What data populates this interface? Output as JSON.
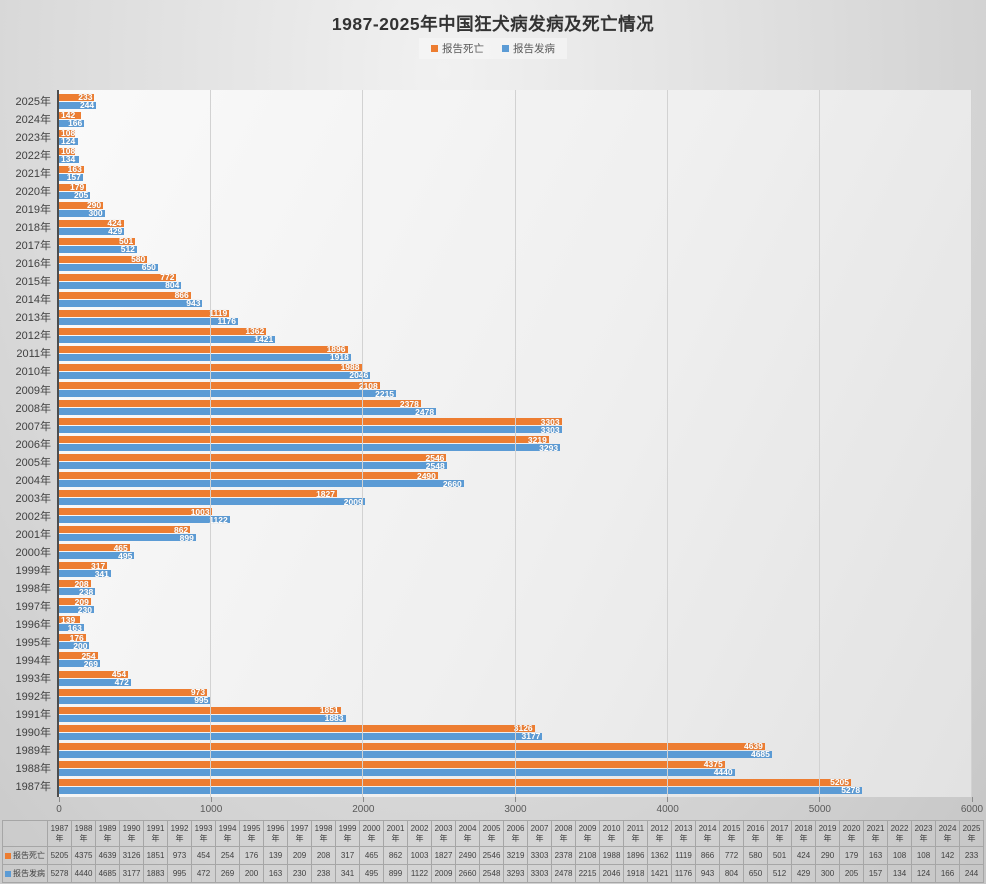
{
  "title": "1987-2025年中国狂犬病发病及死亡情况",
  "year_suffix": "年",
  "colors": {
    "deaths": "#ED7D31",
    "cases": "#5B9BD5"
  },
  "legend": [
    {
      "label": "报告死亡",
      "color": "#ED7D31"
    },
    {
      "label": "报告发病",
      "color": "#5B9BD5"
    }
  ],
  "chart_data": {
    "type": "bar",
    "orientation": "horizontal",
    "title": "1987-2025年中国狂犬病发病及死亡情况",
    "xlabel": "",
    "ylabel": "",
    "xlim": [
      0,
      6000
    ],
    "x_ticks": [
      0,
      1000,
      2000,
      3000,
      4000,
      5000,
      6000
    ],
    "grid": true,
    "legend_position": "top",
    "axis_note": "2025 at top, 1987 at bottom; data labels inside bar end, white",
    "categories": [
      "1987",
      "1988",
      "1989",
      "1990",
      "1991",
      "1992",
      "1993",
      "1994",
      "1995",
      "1996",
      "1997",
      "1998",
      "1999",
      "2000",
      "2001",
      "2002",
      "2003",
      "2004",
      "2005",
      "2006",
      "2007",
      "2008",
      "2009",
      "2010",
      "2011",
      "2012",
      "2013",
      "2014",
      "2015",
      "2016",
      "2017",
      "2018",
      "2019",
      "2020",
      "2021",
      "2022",
      "2023",
      "2024",
      "2025"
    ],
    "series": [
      {
        "name": "报告死亡",
        "color": "#ED7D31",
        "values": [
          5205,
          4375,
          4639,
          3126,
          1851,
          973,
          454,
          254,
          176,
          139,
          209,
          208,
          317,
          465,
          862,
          1003,
          1827,
          2490,
          2546,
          3219,
          3303,
          2378,
          2108,
          1988,
          1896,
          1362,
          1119,
          866,
          772,
          580,
          501,
          424,
          290,
          179,
          163,
          108,
          108,
          142,
          233
        ]
      },
      {
        "name": "报告发病",
        "color": "#5B9BD5",
        "values": [
          5278,
          4440,
          4685,
          3177,
          1883,
          995,
          472,
          269,
          200,
          163,
          230,
          238,
          341,
          495,
          899,
          1122,
          2009,
          2660,
          2548,
          3293,
          3303,
          2478,
          2215,
          2046,
          1918,
          1421,
          1176,
          943,
          804,
          650,
          512,
          429,
          300,
          205,
          157,
          134,
          124,
          166,
          244
        ]
      }
    ]
  },
  "table": {
    "row_headers": [
      "报告死亡",
      "报告发病"
    ]
  }
}
